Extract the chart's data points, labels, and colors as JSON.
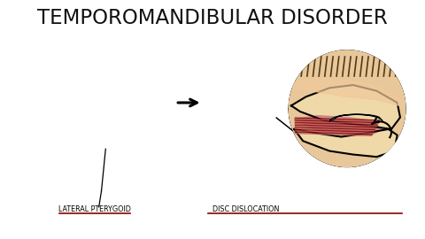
{
  "title1": "TEMPOROMANDIBULAR",
  "title2": "DISORDER",
  "title_color": "#111111",
  "underline_color": "#8B0000",
  "bg_color": "#FFFFFF",
  "label1": "LATERAL PTERYGOID",
  "label2": "DISC DISLOCATION",
  "skull_fill": "#F0D9A8",
  "skull_stroke": "#222222",
  "muscle_dark": "#7B0000",
  "muscle_mid": "#A00000",
  "muscle_light": "#D08080",
  "muscle_stripe": "#C08080",
  "glow_red": "#FF2200",
  "disc_color": "#AADDEE",
  "zoom_bg": "#E8C89A",
  "zoom_border": "#111111",
  "hair_color": "#3a2000",
  "skin_color": "#F0C89A"
}
